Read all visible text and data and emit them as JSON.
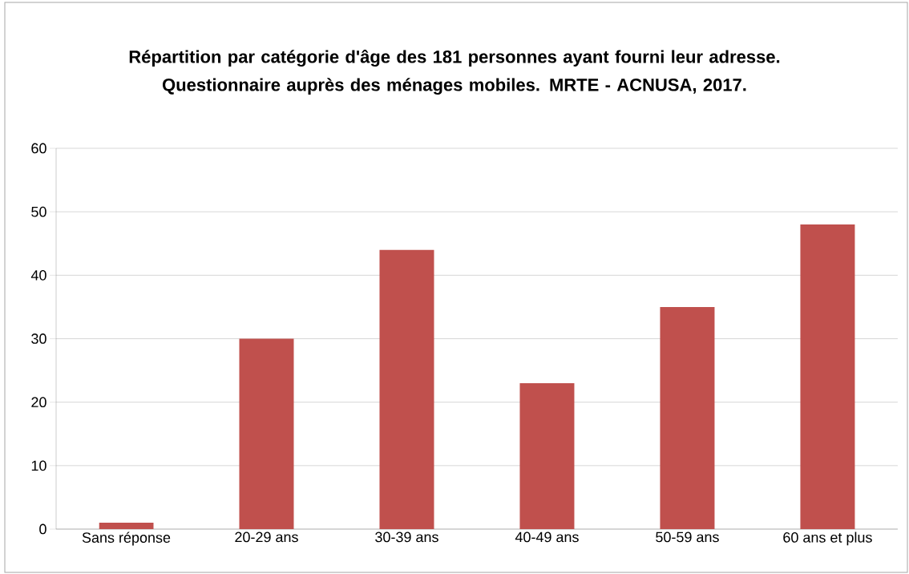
{
  "chart_data": {
    "type": "bar",
    "title": "Répartition par catégorie d'âge des 181 personnes ayant fourni leur adresse. Questionnaire auprès des ménages mobiles. MRTE - ACNUSA, 2017.",
    "categories": [
      "Sans réponse",
      "20-29 ans",
      "30-39 ans",
      "40-49 ans",
      "50-59 ans",
      "60 ans et plus"
    ],
    "values": [
      1,
      30,
      44,
      23,
      35,
      48
    ],
    "color": "#c0504d",
    "ylim": [
      0,
      60
    ],
    "yticks": [
      0,
      10,
      20,
      30,
      40,
      50,
      60
    ],
    "grid": "y"
  }
}
